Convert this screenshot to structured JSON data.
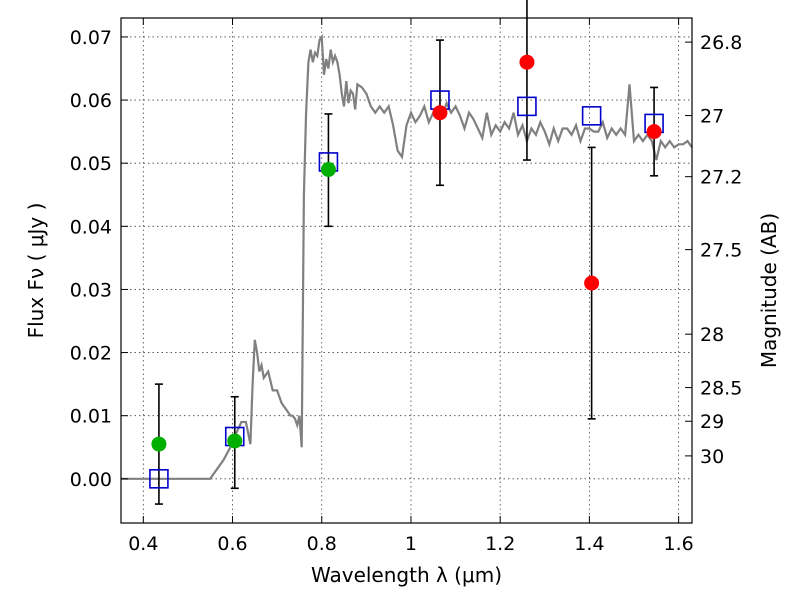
{
  "chart_data": {
    "type": "scatter",
    "title": "",
    "xlabel": "Wavelength  λ (μm)",
    "ylabel": "Flux  Fν  ( μJy )",
    "y2label": "Magnitude (AB)",
    "xlim": [
      0.35,
      1.63
    ],
    "ylim": [
      -0.007,
      0.073
    ],
    "xticks": [
      0.4,
      0.6,
      0.8,
      1.0,
      1.2,
      1.4,
      1.6
    ],
    "xtick_labels": [
      "0.4",
      "0.6",
      "0.8",
      "1",
      "1.2",
      "1.4",
      "1.6"
    ],
    "yticks": [
      0.0,
      0.01,
      0.02,
      0.03,
      0.04,
      0.05,
      0.06,
      0.07
    ],
    "ytick_labels": [
      "0.00",
      "0.01",
      "0.02",
      "0.03",
      "0.04",
      "0.05",
      "0.06",
      "0.07"
    ],
    "magnitude_ticks": [
      26.8,
      27.0,
      27.2,
      27.5,
      28.0,
      28.5,
      29.0,
      30.0
    ],
    "magnitude_tick_labels": [
      "26.8",
      "27",
      "27.2",
      "27.5",
      "28",
      "28.5",
      "29",
      "30"
    ],
    "grid": true,
    "colors": {
      "spectrum": "#808080",
      "green_points": "#00b000",
      "red_points": "#ff0000",
      "model_boxes": "#0000cc",
      "errorbar": "#000000"
    },
    "series": [
      {
        "kind": "spectrum-line",
        "x": [
          0.35,
          0.55,
          0.565,
          0.58,
          0.595,
          0.61,
          0.62,
          0.63,
          0.64,
          0.645,
          0.65,
          0.655,
          0.66,
          0.665,
          0.67,
          0.68,
          0.69,
          0.7,
          0.71,
          0.72,
          0.73,
          0.735,
          0.74,
          0.745,
          0.75,
          0.755,
          0.76,
          0.765,
          0.77,
          0.775,
          0.78,
          0.785,
          0.79,
          0.795,
          0.8,
          0.805,
          0.81,
          0.815,
          0.82,
          0.825,
          0.83,
          0.835,
          0.84,
          0.845,
          0.85,
          0.855,
          0.86,
          0.865,
          0.87,
          0.875,
          0.88,
          0.89,
          0.9,
          0.91,
          0.92,
          0.93,
          0.94,
          0.95,
          0.96,
          0.97,
          0.98,
          0.99,
          1.0,
          1.01,
          1.02,
          1.03,
          1.04,
          1.05,
          1.06,
          1.07,
          1.08,
          1.09,
          1.1,
          1.11,
          1.12,
          1.13,
          1.14,
          1.15,
          1.16,
          1.17,
          1.18,
          1.19,
          1.2,
          1.21,
          1.22,
          1.23,
          1.24,
          1.25,
          1.26,
          1.27,
          1.28,
          1.29,
          1.3,
          1.31,
          1.32,
          1.33,
          1.34,
          1.35,
          1.36,
          1.37,
          1.38,
          1.39,
          1.4,
          1.41,
          1.42,
          1.43,
          1.44,
          1.45,
          1.46,
          1.47,
          1.48,
          1.49,
          1.5,
          1.51,
          1.52,
          1.53,
          1.54,
          1.55,
          1.56,
          1.57,
          1.58,
          1.59,
          1.6,
          1.61,
          1.62,
          1.63
        ],
        "y": [
          0.0,
          0.0,
          0.0015,
          0.003,
          0.005,
          0.0075,
          0.009,
          0.009,
          0.0055,
          0.015,
          0.022,
          0.02,
          0.017,
          0.018,
          0.016,
          0.017,
          0.014,
          0.014,
          0.012,
          0.011,
          0.01,
          0.01,
          0.0095,
          0.0085,
          0.01,
          0.005,
          0.045,
          0.058,
          0.066,
          0.068,
          0.066,
          0.0675,
          0.067,
          0.0695,
          0.07,
          0.064,
          0.0665,
          0.065,
          0.068,
          0.066,
          0.067,
          0.066,
          0.064,
          0.061,
          0.059,
          0.063,
          0.0595,
          0.0615,
          0.061,
          0.0585,
          0.0625,
          0.062,
          0.061,
          0.059,
          0.058,
          0.059,
          0.058,
          0.059,
          0.056,
          0.052,
          0.051,
          0.056,
          0.058,
          0.0565,
          0.0575,
          0.059,
          0.0565,
          0.058,
          0.057,
          0.0575,
          0.0595,
          0.058,
          0.059,
          0.0575,
          0.0555,
          0.058,
          0.057,
          0.0555,
          0.054,
          0.058,
          0.0545,
          0.056,
          0.055,
          0.0565,
          0.0555,
          0.058,
          0.0545,
          0.056,
          0.0535,
          0.0555,
          0.0545,
          0.0565,
          0.055,
          0.053,
          0.0555,
          0.0535,
          0.0555,
          0.0555,
          0.0545,
          0.056,
          0.0535,
          0.0555,
          0.0555,
          0.055,
          0.055,
          0.0565,
          0.054,
          0.0555,
          0.0545,
          0.0555,
          0.0545,
          0.0625,
          0.0535,
          0.0545,
          0.0535,
          0.0545,
          0.0535,
          0.0505,
          0.0535,
          0.0525,
          0.0535,
          0.0525,
          0.053,
          0.053,
          0.0535,
          0.0525
        ]
      },
      {
        "kind": "observed-green",
        "x": [
          0.435,
          0.605,
          0.815
        ],
        "y": [
          0.0055,
          0.006,
          0.049
        ],
        "yerr_low": [
          0.0095,
          0.0075,
          0.009
        ],
        "yerr_high": [
          0.0095,
          0.007,
          0.0088
        ]
      },
      {
        "kind": "observed-red",
        "x": [
          1.065,
          1.26,
          1.405,
          1.545
        ],
        "y": [
          0.058,
          0.066,
          0.031,
          0.055
        ],
        "yerr_low": [
          0.0115,
          0.0155,
          0.0215,
          0.007
        ],
        "yerr_high": [
          0.0115,
          0.0155,
          0.0215,
          0.007
        ]
      },
      {
        "kind": "model-boxes",
        "x": [
          0.435,
          0.605,
          0.815,
          1.065,
          1.26,
          1.405,
          1.545
        ],
        "y": [
          0.0,
          0.0067,
          0.0502,
          0.06,
          0.059,
          0.0575,
          0.0563
        ]
      }
    ]
  }
}
